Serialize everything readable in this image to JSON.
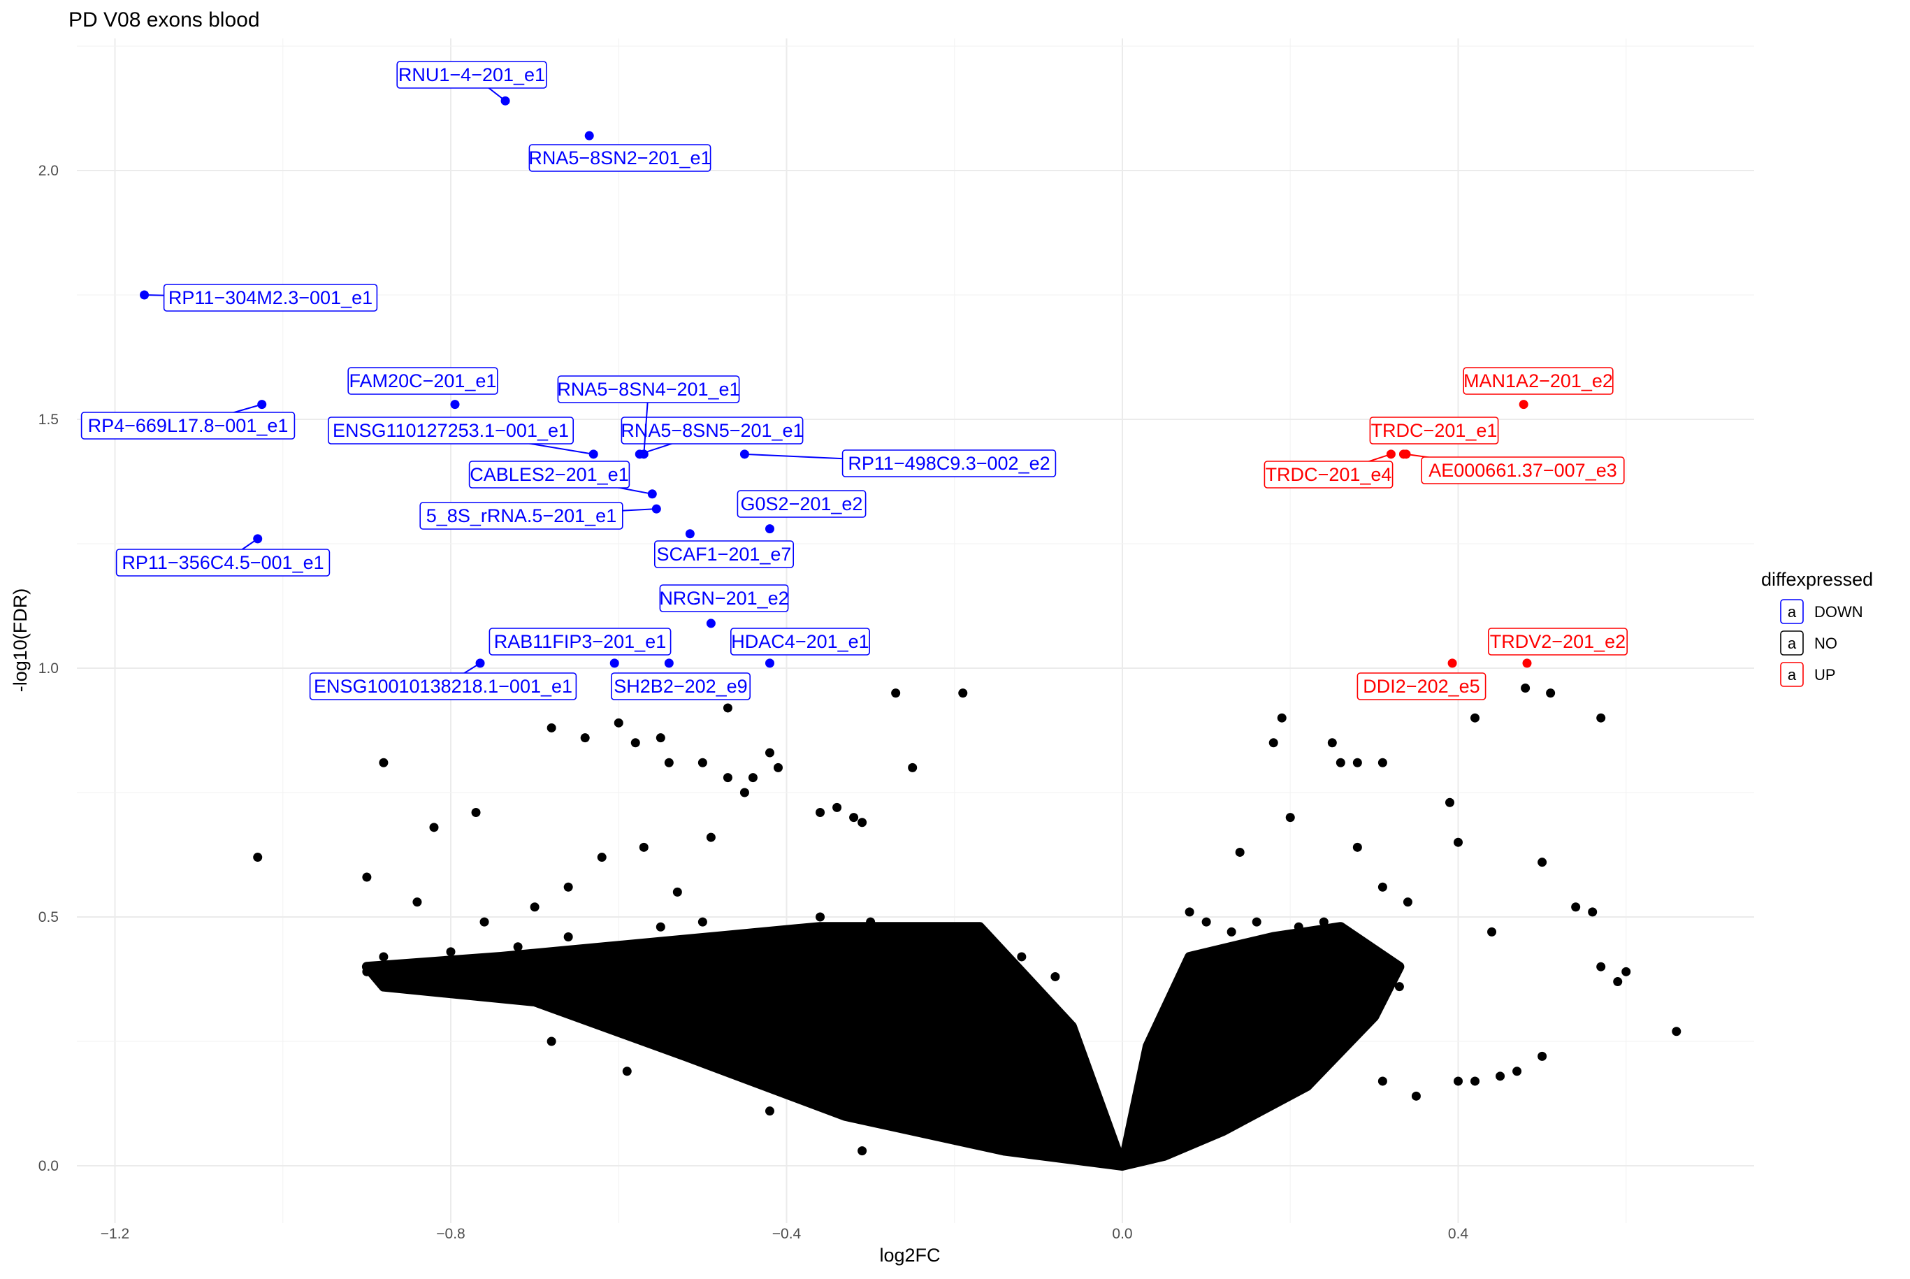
{
  "chart_data": {
    "type": "scatter",
    "title": "PD V08 exons blood",
    "xlabel": "log2FC",
    "ylabel": "-log10(FDR)",
    "xlim": [
      -1.27,
      0.75
    ],
    "ylim": [
      -0.09,
      2.23
    ],
    "x_ticks": [
      -1.2,
      -0.8,
      -0.4,
      0.0,
      0.4
    ],
    "x_tick_labels": [
      "-1.2",
      "-0.8",
      "-0.4",
      "0.0",
      "0.4"
    ],
    "y_ticks": [
      0.0,
      0.5,
      1.0,
      1.5,
      2.0
    ],
    "y_tick_labels": [
      "0.0",
      "0.5",
      "1.0",
      "1.5",
      "2.0"
    ],
    "grid": true,
    "legend": {
      "title": "diffexpressed",
      "position": "right",
      "entries": [
        {
          "key": "DOWN",
          "label": "DOWN",
          "color": "#0000ff"
        },
        {
          "key": "NO",
          "label": "NO",
          "color": "#000000"
        },
        {
          "key": "UP",
          "label": "UP",
          "color": "#ff0000"
        }
      ]
    },
    "series": [
      {
        "name": "DOWN",
        "color": "#0000ff",
        "points": [
          {
            "x": -0.735,
            "y": 2.14,
            "label": "RNU1-4-201_e1"
          },
          {
            "x": -0.635,
            "y": 2.07,
            "label": "RNA5-8SN2-201_e1"
          },
          {
            "x": -1.165,
            "y": 1.75,
            "label": "RP11-304M2.3-001_e1"
          },
          {
            "x": -1.025,
            "y": 1.53,
            "label": "RP4-669L17.8-001_e1"
          },
          {
            "x": -0.795,
            "y": 1.53,
            "label": "FAM20C-201_e1"
          },
          {
            "x": -0.63,
            "y": 1.43,
            "label": "ENSG110127253.1-001_e1"
          },
          {
            "x": -0.575,
            "y": 1.43,
            "label": "RNA5-8SN5-201_e1"
          },
          {
            "x": -0.56,
            "y": 1.35,
            "label": "CABLES2-201_e1"
          },
          {
            "x": -0.555,
            "y": 1.32,
            "label": "5_8S_rRNA.5-201_e1"
          },
          {
            "x": -0.45,
            "y": 1.43,
            "label": "RP11-498C9.3-002_e2"
          },
          {
            "x": -0.515,
            "y": 1.27,
            "label": "SCAF1-201_e7"
          },
          {
            "x": -0.42,
            "y": 1.28,
            "label": "G0S2-201_e2"
          },
          {
            "x": -1.03,
            "y": 1.26,
            "label": "RP11-356C4.5-001_e1"
          },
          {
            "x": -0.49,
            "y": 1.09,
            "label": "NRGN-201_e2"
          },
          {
            "x": -0.765,
            "y": 1.01,
            "label": "ENSG10010138218.1-001_e1"
          },
          {
            "x": -0.605,
            "y": 1.01,
            "label": "RAB11FIP3-201_e1"
          },
          {
            "x": -0.54,
            "y": 1.01,
            "label": "SH2B2-202_e9"
          },
          {
            "x": -0.42,
            "y": 1.01,
            "label": "HDAC4-201_e1"
          },
          {
            "x": -0.57,
            "y": 1.43,
            "label": "RNA5-8SN4-201_e1"
          }
        ]
      },
      {
        "name": "UP",
        "color": "#ff0000",
        "points": [
          {
            "x": 0.478,
            "y": 1.53,
            "label": "MAN1A2-201_e2"
          },
          {
            "x": 0.335,
            "y": 1.43,
            "label": "TRDC-201_e1"
          },
          {
            "x": 0.32,
            "y": 1.43,
            "label": "TRDC-201_e4"
          },
          {
            "x": 0.338,
            "y": 1.43,
            "label": "AE000661.37-007_e3"
          },
          {
            "x": 0.482,
            "y": 1.01,
            "label": "TRDV2-201_e2"
          },
          {
            "x": 0.393,
            "y": 1.01,
            "label": "DDI2-202_e5"
          }
        ]
      },
      {
        "name": "NO",
        "color": "#000000",
        "points": [
          {
            "x": -1.03,
            "y": 0.62
          },
          {
            "x": -0.9,
            "y": 0.58
          },
          {
            "x": -0.88,
            "y": 0.81
          },
          {
            "x": -0.82,
            "y": 0.68
          },
          {
            "x": -0.84,
            "y": 0.53
          },
          {
            "x": -0.77,
            "y": 0.71
          },
          {
            "x": -0.68,
            "y": 0.88
          },
          {
            "x": -0.64,
            "y": 0.86
          },
          {
            "x": -0.58,
            "y": 0.85
          },
          {
            "x": -0.54,
            "y": 0.81
          },
          {
            "x": -0.5,
            "y": 0.81
          },
          {
            "x": -0.47,
            "y": 0.78
          },
          {
            "x": -0.45,
            "y": 0.75
          },
          {
            "x": -0.44,
            "y": 0.78
          },
          {
            "x": -0.42,
            "y": 0.83
          },
          {
            "x": -0.41,
            "y": 0.8
          },
          {
            "x": -0.36,
            "y": 0.71
          },
          {
            "x": -0.34,
            "y": 0.72
          },
          {
            "x": -0.32,
            "y": 0.7
          },
          {
            "x": -0.31,
            "y": 0.69
          },
          {
            "x": -0.27,
            "y": 0.95
          },
          {
            "x": -0.25,
            "y": 0.8
          },
          {
            "x": -0.19,
            "y": 0.95
          },
          {
            "x": -0.47,
            "y": 0.92
          },
          {
            "x": -0.55,
            "y": 0.86
          },
          {
            "x": -0.6,
            "y": 0.89
          },
          {
            "x": -0.66,
            "y": 0.56
          },
          {
            "x": -0.62,
            "y": 0.62
          },
          {
            "x": -0.57,
            "y": 0.64
          },
          {
            "x": -0.53,
            "y": 0.55
          },
          {
            "x": -0.49,
            "y": 0.66
          },
          {
            "x": -0.7,
            "y": 0.52
          },
          {
            "x": -0.76,
            "y": 0.49
          },
          {
            "x": -0.72,
            "y": 0.44
          },
          {
            "x": -0.9,
            "y": 0.39
          },
          {
            "x": -0.88,
            "y": 0.42
          },
          {
            "x": -0.85,
            "y": 0.4
          },
          {
            "x": -0.8,
            "y": 0.43
          },
          {
            "x": -0.66,
            "y": 0.46
          },
          {
            "x": -0.55,
            "y": 0.48
          },
          {
            "x": -0.5,
            "y": 0.49
          },
          {
            "x": -0.46,
            "y": 0.46
          },
          {
            "x": -0.41,
            "y": 0.45
          },
          {
            "x": -0.36,
            "y": 0.5
          },
          {
            "x": -0.3,
            "y": 0.49
          },
          {
            "x": -0.25,
            "y": 0.48
          },
          {
            "x": -0.2,
            "y": 0.48
          },
          {
            "x": -0.17,
            "y": 0.47
          },
          {
            "x": -0.12,
            "y": 0.42
          },
          {
            "x": -0.08,
            "y": 0.38
          },
          {
            "x": -0.06,
            "y": 0.26
          },
          {
            "x": -0.68,
            "y": 0.25
          },
          {
            "x": -0.59,
            "y": 0.19
          },
          {
            "x": -0.42,
            "y": 0.11
          },
          {
            "x": -0.31,
            "y": 0.03
          },
          {
            "x": -0.62,
            "y": 0.3
          },
          {
            "x": -0.48,
            "y": 0.2
          },
          {
            "x": 0.18,
            "y": 0.85
          },
          {
            "x": 0.19,
            "y": 0.9
          },
          {
            "x": 0.25,
            "y": 0.85
          },
          {
            "x": 0.26,
            "y": 0.81
          },
          {
            "x": 0.28,
            "y": 0.81
          },
          {
            "x": 0.31,
            "y": 0.81
          },
          {
            "x": 0.14,
            "y": 0.63
          },
          {
            "x": 0.2,
            "y": 0.7
          },
          {
            "x": 0.28,
            "y": 0.64
          },
          {
            "x": 0.31,
            "y": 0.56
          },
          {
            "x": 0.34,
            "y": 0.53
          },
          {
            "x": 0.39,
            "y": 0.73
          },
          {
            "x": 0.4,
            "y": 0.65
          },
          {
            "x": 0.44,
            "y": 0.47
          },
          {
            "x": 0.42,
            "y": 0.9
          },
          {
            "x": 0.48,
            "y": 0.96
          },
          {
            "x": 0.51,
            "y": 0.95
          },
          {
            "x": 0.57,
            "y": 0.9
          },
          {
            "x": 0.5,
            "y": 0.61
          },
          {
            "x": 0.54,
            "y": 0.52
          },
          {
            "x": 0.56,
            "y": 0.51
          },
          {
            "x": 0.57,
            "y": 0.4
          },
          {
            "x": 0.6,
            "y": 0.39
          },
          {
            "x": 0.59,
            "y": 0.37
          },
          {
            "x": 0.66,
            "y": 0.27
          },
          {
            "x": 0.5,
            "y": 0.22
          },
          {
            "x": 0.47,
            "y": 0.19
          },
          {
            "x": 0.45,
            "y": 0.18
          },
          {
            "x": 0.4,
            "y": 0.17
          },
          {
            "x": 0.42,
            "y": 0.17
          },
          {
            "x": 0.35,
            "y": 0.14
          },
          {
            "x": 0.31,
            "y": 0.17
          },
          {
            "x": 0.22,
            "y": 0.3
          },
          {
            "x": 0.25,
            "y": 0.38
          },
          {
            "x": 0.1,
            "y": 0.49
          },
          {
            "x": 0.13,
            "y": 0.47
          },
          {
            "x": 0.16,
            "y": 0.49
          },
          {
            "x": 0.21,
            "y": 0.48
          },
          {
            "x": 0.24,
            "y": 0.49
          },
          {
            "x": 0.08,
            "y": 0.51
          },
          {
            "x": 0.27,
            "y": 0.44
          },
          {
            "x": 0.33,
            "y": 0.36
          }
        ]
      }
    ]
  }
}
